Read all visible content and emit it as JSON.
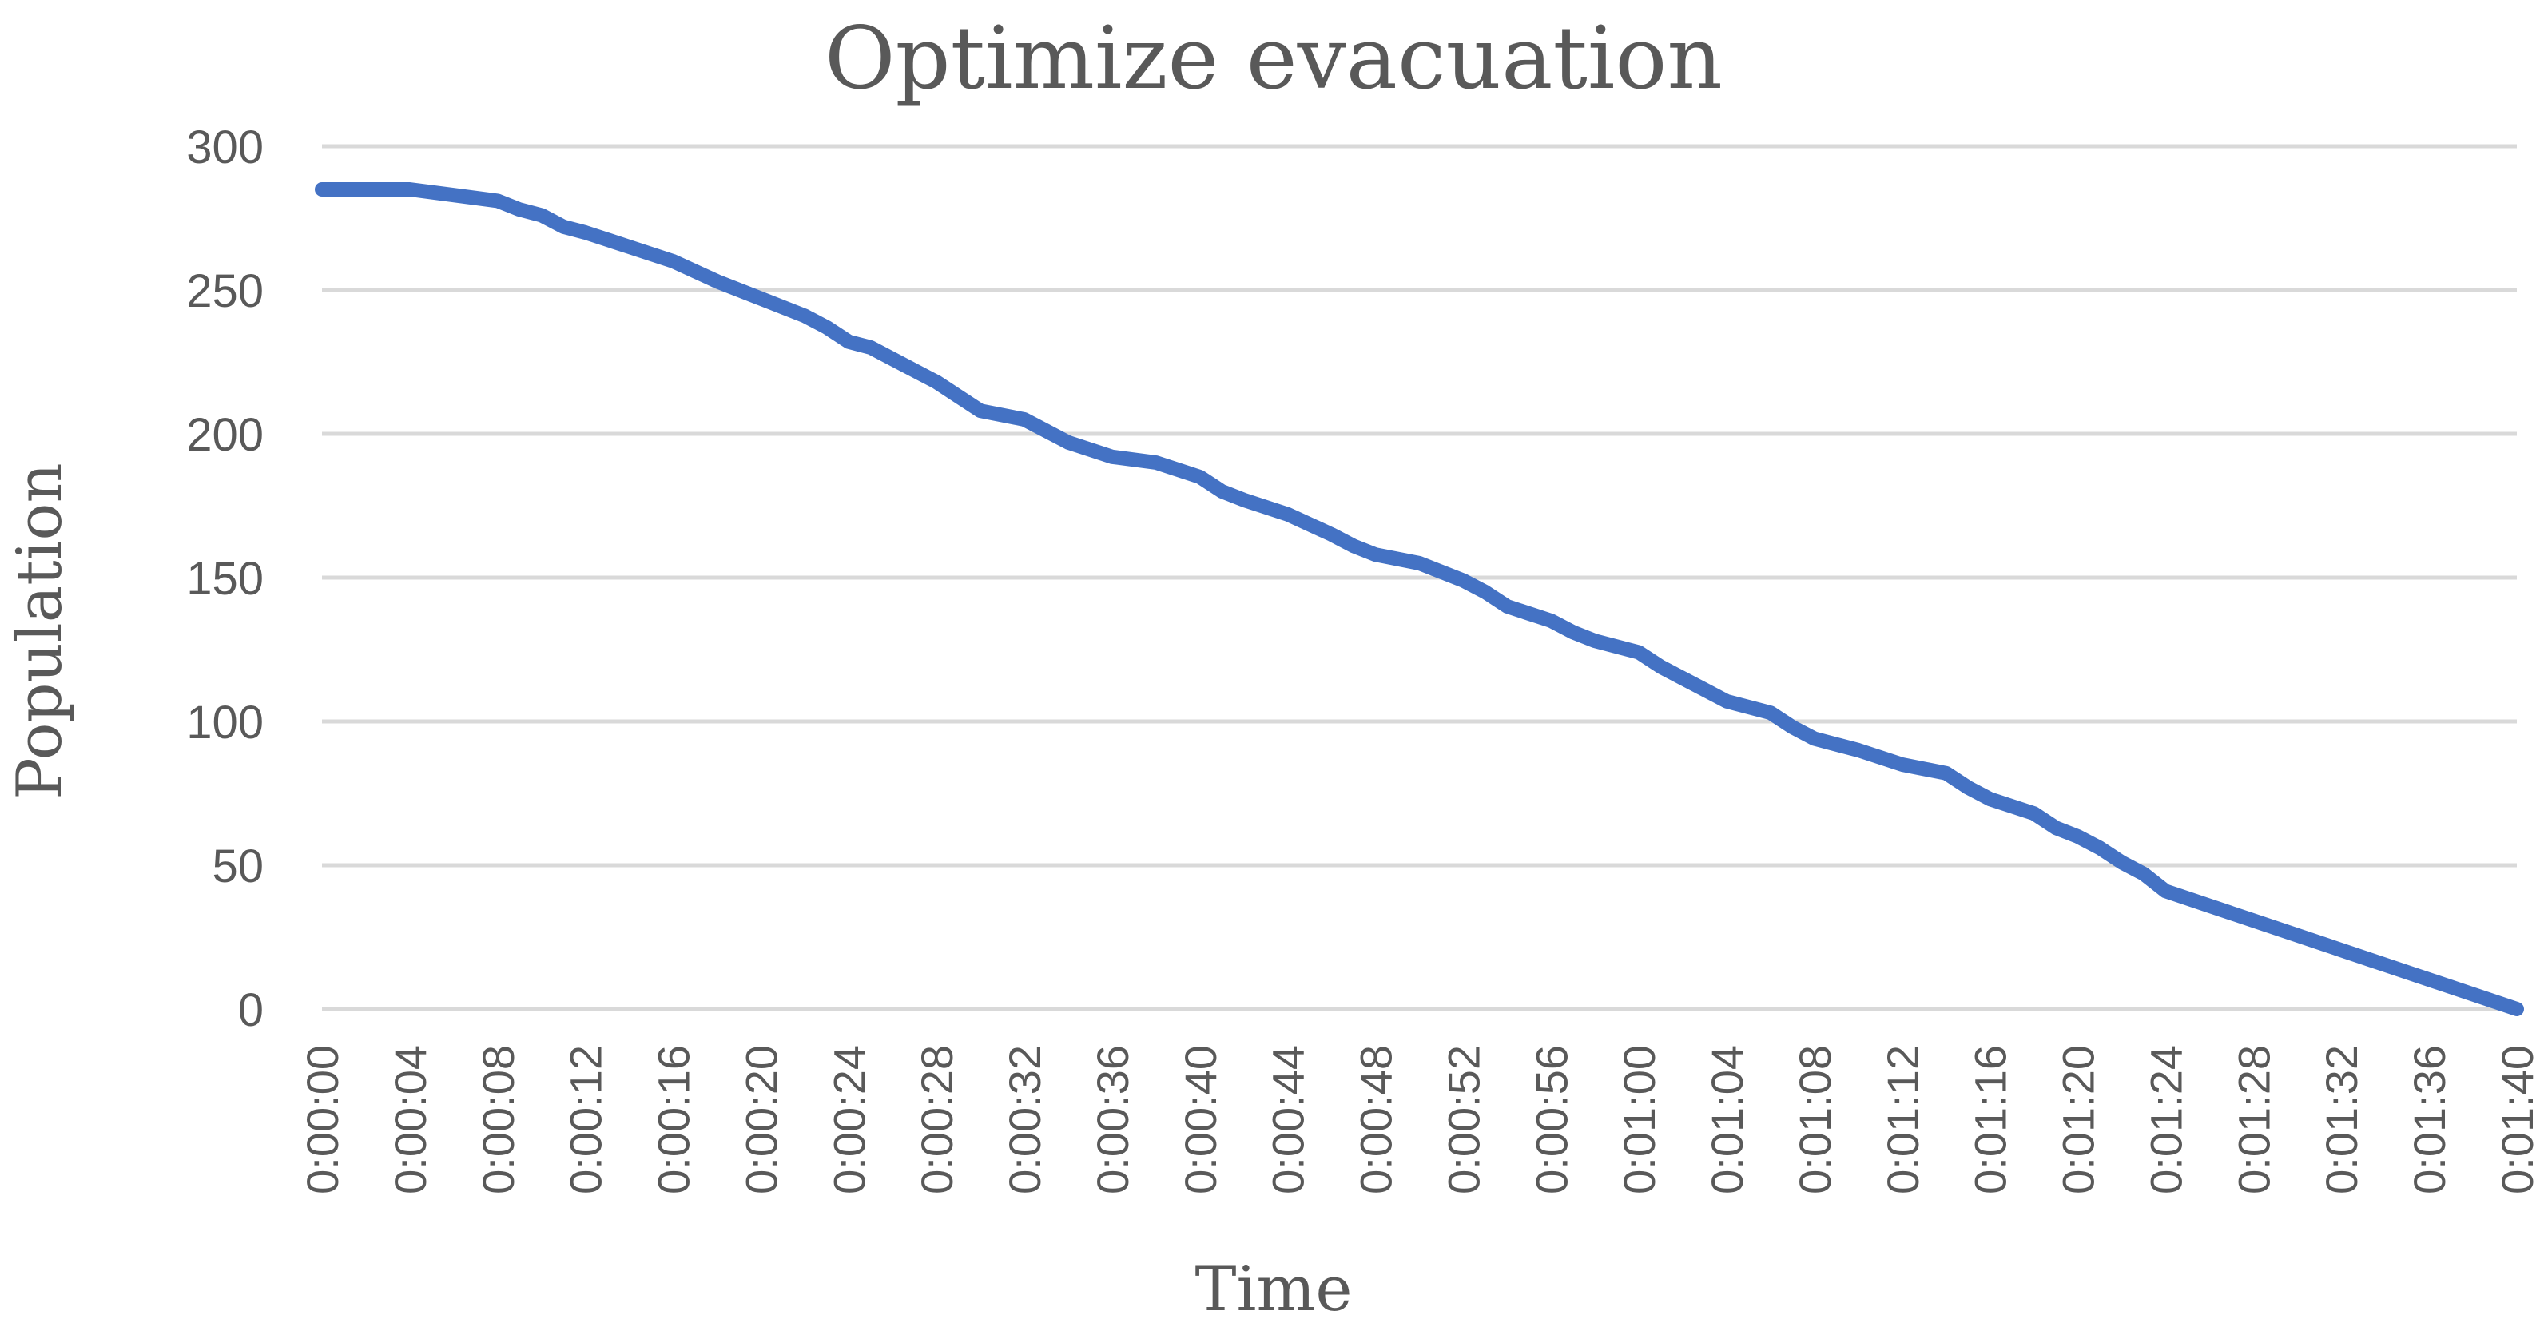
{
  "chart_data": {
    "type": "line",
    "title": "Optimize evacuation",
    "xlabel": "Time",
    "ylabel": "Population",
    "ylim": [
      0,
      300
    ],
    "yticks": [
      "0",
      "50",
      "100",
      "150",
      "200",
      "250",
      "300"
    ],
    "x_tick_labels": [
      "0:00:00",
      "0:00:04",
      "0:00:08",
      "0:00:12",
      "0:00:16",
      "0:00:20",
      "0:00:24",
      "0:00:28",
      "0:00:32",
      "0:00:36",
      "0:00:40",
      "0:00:44",
      "0:00:48",
      "0:00:52",
      "0:00:56",
      "0:01:00",
      "0:01:04",
      "0:01:08",
      "0:01:12",
      "0:01:16",
      "0:01:20",
      "0:01:24",
      "0:01:28",
      "0:01:32",
      "0:01:36",
      "0:01:40"
    ],
    "x_unit": "seconds",
    "xlim": [
      0,
      100
    ],
    "grid": true,
    "legend": "none",
    "series": [
      {
        "color": "#4472c4",
        "x": [
          0,
          2,
          4,
          6,
          8,
          9,
          10,
          11,
          12,
          14,
          16,
          18,
          20,
          22,
          23,
          24,
          25,
          26,
          28,
          29,
          30,
          32,
          33,
          34,
          36,
          38,
          40,
          41,
          42,
          44,
          46,
          47,
          48,
          50,
          52,
          53,
          54,
          56,
          57,
          58,
          60,
          61,
          62,
          63,
          64,
          66,
          67,
          68,
          70,
          72,
          74,
          75,
          76,
          78,
          79,
          80,
          81,
          82,
          83,
          84,
          100
        ],
        "values": [
          285,
          285,
          285,
          283,
          281,
          278,
          276,
          272,
          270,
          265,
          260,
          253,
          247,
          241,
          237,
          232,
          230,
          226,
          218,
          213,
          208,
          205,
          201,
          197,
          192,
          190,
          185,
          180,
          177,
          172,
          165,
          161,
          158,
          155,
          149,
          145,
          140,
          135,
          131,
          128,
          124,
          119,
          115,
          111,
          107,
          103,
          98,
          94,
          90,
          85,
          82,
          77,
          73,
          68,
          63,
          60,
          56,
          51,
          47,
          41,
          0
        ]
      }
    ]
  }
}
